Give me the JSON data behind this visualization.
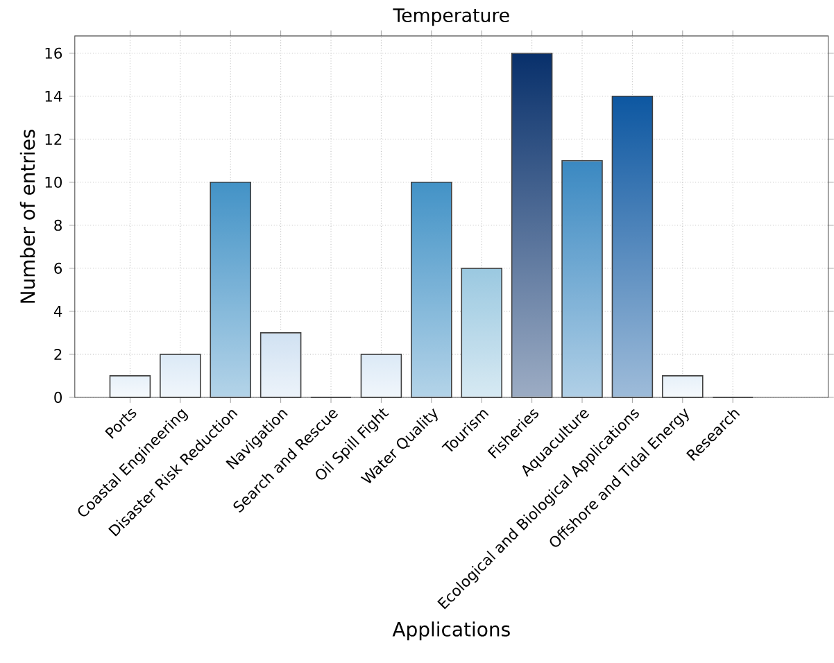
{
  "chart_data": {
    "type": "bar",
    "title": "Temperature",
    "xlabel": "Applications",
    "ylabel": "Number of entries",
    "categories": [
      "Ports",
      "Coastal Engineering",
      "Disaster Risk Reduction",
      "Navigation",
      "Search and Rescue",
      "Oil Spill Fight",
      "Water Quality",
      "Tourism",
      "Fisheries",
      "Aquaculture",
      "Ecological and Biological Applications",
      "Offshore and Tidal Energy",
      "Research"
    ],
    "values": [
      1,
      2,
      10,
      3,
      0,
      2,
      10,
      6,
      16,
      11,
      14,
      1,
      0
    ],
    "colors": [
      "#e6f0f9",
      "#dbe9f6",
      "#4292c6",
      "#d0e1f2",
      "#f7fbff",
      "#dbe9f6",
      "#4292c6",
      "#9ac8e0",
      "#08306b",
      "#3a88c1",
      "#0d57a1",
      "#e6f0f9",
      "#f7fbff"
    ],
    "ylim": [
      0,
      16.8
    ],
    "yticks": [
      0,
      2,
      4,
      6,
      8,
      10,
      12,
      14,
      16
    ],
    "grid": true
  }
}
